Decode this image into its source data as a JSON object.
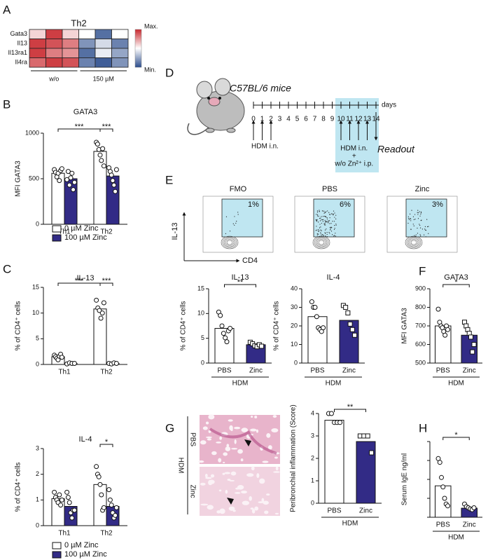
{
  "panel_labels": [
    "A",
    "B",
    "C",
    "D",
    "E",
    "F",
    "G",
    "H"
  ],
  "heatmap": {
    "title": "Th2",
    "rows": [
      "Gata3",
      "Il13",
      "Il13ra1",
      "Il4ra"
    ],
    "groups": [
      "w/o",
      "150 µM"
    ],
    "values": [
      [
        0.2,
        0.9,
        0.2,
        0,
        -0.8,
        0
      ],
      [
        0.9,
        0.8,
        0.6,
        -0.6,
        -0.2,
        -0.7
      ],
      [
        0.9,
        0.6,
        0.5,
        -0.8,
        -0.1,
        -0.5
      ],
      [
        0.7,
        0.9,
        0.8,
        -0.7,
        -0.9,
        -0.6
      ]
    ],
    "max_label": "Max.",
    "min_label": "Min."
  },
  "timeline": {
    "strain": "C57BL/6 mice",
    "days": [
      0,
      1,
      2,
      3,
      4,
      5,
      6,
      7,
      8,
      9,
      10,
      11,
      12,
      13,
      14
    ],
    "unit": "days",
    "first_treatment": {
      "days": [
        0,
        1,
        2
      ],
      "label": "HDM i.n."
    },
    "second_treatment": {
      "days": [
        10,
        11,
        12,
        13
      ],
      "label": "HDM i.n.",
      "plus": "+",
      "extra": "w/o Zn²⁺ i.p."
    },
    "readout": {
      "day": 14,
      "label": "Readout"
    }
  },
  "flow": {
    "x_label": "CD4",
    "y_label": "IL-13",
    "plots": [
      {
        "title": "FMO",
        "percent": "1%"
      },
      {
        "title": "PBS",
        "percent": "6%"
      },
      {
        "title": "Zinc",
        "percent": "3%"
      }
    ]
  },
  "histology": {
    "group": "HDM",
    "rows": [
      "PBS",
      "Zinc"
    ]
  },
  "chart_data": [
    {
      "type": "bar",
      "title": "GATA3",
      "ylabel": "MFI GATA3",
      "categories": [
        "Th1",
        "Th2"
      ],
      "ylim": [
        0,
        1000
      ],
      "yticks": [
        0,
        500,
        1000
      ],
      "legend": true,
      "series": [
        {
          "name": "0 µM Zinc",
          "color": "#ffffff",
          "values": [
            560,
            800
          ],
          "points": [
            [
              600,
              570,
              520,
              560,
              480,
              590,
              610
            ],
            [
              900,
              880,
              820,
              760,
              700,
              830,
              640
            ]
          ]
        },
        {
          "name": "100 µM Zinc",
          "color": "#322b86",
          "values": [
            500,
            530
          ],
          "points": [
            [
              490,
              580,
              430,
              510,
              560,
              380,
              460
            ],
            [
              620,
              580,
              540,
              480,
              430,
              360,
              600
            ]
          ]
        }
      ],
      "significance": [
        {
          "label": "***",
          "span": [
            [
              0,
              0
            ],
            [
              0,
              1
            ]
          ]
        },
        {
          "label": "***",
          "span": [
            [
              0,
              1
            ],
            [
              1,
              1
            ]
          ]
        }
      ]
    },
    {
      "type": "bar",
      "title": "IL-13",
      "ylabel": "% of CD4⁺ cells",
      "categories": [
        "Th1",
        "Th2"
      ],
      "ylim": [
        0,
        15
      ],
      "yticks": [
        0,
        5,
        10,
        15
      ],
      "legend": false,
      "series": [
        {
          "name": "0 µM Zinc",
          "color": "#ffffff",
          "values": [
            1.5,
            10.8
          ],
          "points": [
            [
              1.8,
              1.5,
              1.2,
              0.9,
              1.6,
              2.0,
              1.4
            ],
            [
              12.5,
              11,
              10.5,
              9,
              10,
              12
            ]
          ]
        },
        {
          "name": "100 µM Zinc",
          "color": "#322b86",
          "values": [
            0.2,
            0.2
          ],
          "points": [
            [
              0.1,
              0.3,
              0.2,
              0.2
            ],
            [
              0.2,
              0.1,
              0.3,
              0.2
            ]
          ]
        }
      ],
      "significance": [
        {
          "label": "***",
          "span": [
            [
              0,
              0
            ],
            [
              0,
              1
            ]
          ]
        },
        {
          "label": "***",
          "span": [
            [
              0,
              1
            ],
            [
              1,
              1
            ]
          ]
        }
      ]
    },
    {
      "type": "bar",
      "title": "IL-4",
      "ylabel": "% of CD4⁺ cells",
      "categories": [
        "Th1",
        "Th2"
      ],
      "ylim": [
        0,
        3
      ],
      "yticks": [
        0,
        1,
        2,
        3
      ],
      "legend": true,
      "series": [
        {
          "name": "0 µM Zinc",
          "color": "#ffffff",
          "values": [
            1.05,
            1.6
          ],
          "points": [
            [
              1.3,
              1.1,
              1.0,
              0.9,
              1.2,
              0.8,
              1.0
            ],
            [
              2.3,
              2.0,
              1.9,
              1.6,
              1.2,
              0.6,
              0.7
            ]
          ]
        },
        {
          "name": "100 µM Zinc",
          "color": "#322b86",
          "values": [
            0.75,
            0.75
          ],
          "points": [
            [
              1.3,
              1.1,
              0.9,
              0.5,
              0.3,
              0.6,
              0.6
            ],
            [
              1.4,
              1.0,
              0.8,
              0.5,
              0.3,
              0.4,
              0.7
            ]
          ]
        }
      ],
      "significance": [
        {
          "label": "*",
          "span": [
            [
              0,
              1
            ],
            [
              1,
              1
            ]
          ]
        }
      ]
    },
    {
      "type": "bar",
      "title": "IL-13",
      "ylabel": "% of CD4⁺ cells",
      "categories": [
        "PBS",
        "Zinc"
      ],
      "group_label": "HDM",
      "ylim": [
        0,
        15
      ],
      "yticks": [
        0,
        5,
        10,
        15
      ],
      "values": [
        7.0,
        3.7
      ],
      "colors": [
        "#ffffff",
        "#322b86"
      ],
      "markers": [
        "circle",
        "square"
      ],
      "points": [
        [
          10.3,
          9.6,
          7.5,
          6,
          5.1,
          4.3,
          6.5,
          7
        ],
        [
          4.2,
          3.9,
          3.5,
          3.3,
          3.7,
          3.4
        ]
      ],
      "significance": [
        {
          "label": "**",
          "span": [
            [
              0,
              0
            ],
            [
              0,
              1
            ]
          ]
        }
      ]
    },
    {
      "type": "bar",
      "title": "IL-4",
      "ylabel": "% of CD4⁺ cells",
      "categories": [
        "PBS",
        "Zinc"
      ],
      "group_label": "HDM",
      "ylim": [
        0,
        40
      ],
      "yticks": [
        0,
        10,
        20,
        30,
        40
      ],
      "values": [
        25,
        23
      ],
      "colors": [
        "#ffffff",
        "#322b86"
      ],
      "markers": [
        "circle",
        "square"
      ],
      "points": [
        [
          33,
          30,
          30,
          25,
          19,
          18,
          17,
          19
        ],
        [
          31,
          30,
          27,
          21,
          18,
          15
        ]
      ]
    },
    {
      "type": "bar",
      "title": "GATA3",
      "ylabel": "MFI GATA3",
      "categories": [
        "PBS",
        "Zinc"
      ],
      "group_label": "HDM",
      "ylim": [
        500,
        900
      ],
      "yticks": [
        500,
        600,
        700,
        800,
        900
      ],
      "values": [
        700,
        650
      ],
      "colors": [
        "#ffffff",
        "#322b86"
      ],
      "markers": [
        "circle",
        "square"
      ],
      "points": [
        [
          790,
          720,
          700,
          690,
          670,
          650,
          700,
          680
        ],
        [
          720,
          700,
          680,
          660,
          640,
          560,
          600
        ]
      ],
      "significance": [
        {
          "label": "*",
          "span": [
            [
              0,
              0
            ],
            [
              0,
              1
            ]
          ]
        }
      ]
    },
    {
      "type": "bar",
      "ylabel": "Peribronchial inflammation (Score)",
      "categories": [
        "PBS",
        "Zinc"
      ],
      "group_label": "HDM",
      "ylim": [
        0,
        4
      ],
      "yticks": [
        0,
        1,
        2,
        3,
        4
      ],
      "values": [
        3.7,
        2.75
      ],
      "colors": [
        "#ffffff",
        "#322b86"
      ],
      "markers": [
        "circle",
        "square"
      ],
      "points": [
        [
          4,
          4,
          3.6,
          3.6,
          3.6
        ],
        [
          3,
          3,
          3,
          2.25
        ]
      ],
      "significance": [
        {
          "label": "**",
          "span": [
            [
              0,
              0
            ],
            [
              0,
              1
            ]
          ]
        }
      ]
    },
    {
      "type": "bar",
      "ylabel": "Serum IgE ng/ml",
      "categories": [
        "PBS",
        "Zinc"
      ],
      "group_label": "HDM",
      "ylim": [
        0,
        2000
      ],
      "yticks": [
        0,
        500,
        1000,
        1500,
        2000
      ],
      "tick_labels": false,
      "values": [
        830,
        240
      ],
      "colors": [
        "#ffffff",
        "#322b86"
      ],
      "markers": [
        "circle",
        "circle"
      ],
      "points": [
        [
          1550,
          1450,
          1050,
          800,
          500,
          350,
          300
        ],
        [
          350,
          280,
          250,
          220,
          200,
          250
        ]
      ],
      "significance": [
        {
          "label": "*",
          "span": [
            [
              0,
              0
            ],
            [
              0,
              1
            ]
          ]
        }
      ]
    }
  ]
}
